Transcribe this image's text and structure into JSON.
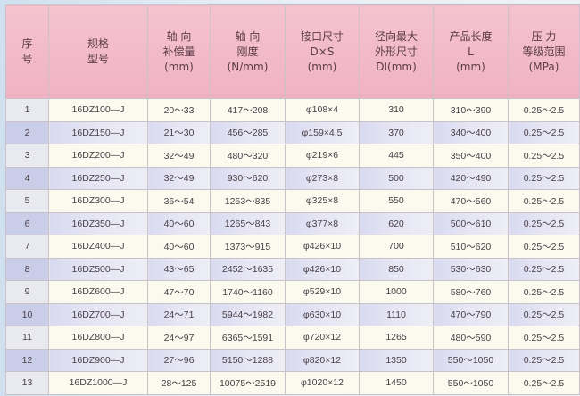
{
  "headers": [
    [
      "序",
      "号"
    ],
    [
      "规格",
      "型号"
    ],
    [
      "轴 向",
      "补偿量",
      "(mm)"
    ],
    [
      "轴 向",
      "刚度",
      "(N/mm)"
    ],
    [
      "接口尺寸",
      "D×S",
      "(mm)"
    ],
    [
      "径向最大",
      "外形尺寸",
      "DI(mm)"
    ],
    [
      "产品长度",
      "L",
      "(mm)"
    ],
    [
      "压 力",
      "等级范围",
      "(MPa)"
    ]
  ],
  "rows": [
    [
      "1",
      "16DZ100—J",
      "20～33",
      "417～208",
      "φ108×4",
      "310",
      "310～390",
      "0.25～2.5"
    ],
    [
      "2",
      "16DZ150—J",
      "21～30",
      "456～285",
      "φ159×4.5",
      "370",
      "340～400",
      "0.25～2.5"
    ],
    [
      "3",
      "16DZ200—J",
      "32～49",
      "480～320",
      "φ219×6",
      "445",
      "350～400",
      "0.25～2.5"
    ],
    [
      "4",
      "16DZ250—J",
      "32～49",
      "930～620",
      "φ273×8",
      "500",
      "420～490",
      "0.25～2.5"
    ],
    [
      "5",
      "16DZ300—J",
      "36～54",
      "1253～835",
      "φ325×8",
      "550",
      "470～560",
      "0.25～2.5"
    ],
    [
      "6",
      "16DZ350—J",
      "40～60",
      "1265～843",
      "φ377×8",
      "620",
      "500～610",
      "0.25～2.5"
    ],
    [
      "7",
      "16DZ400—J",
      "40～60",
      "1373～915",
      "φ426×10",
      "700",
      "510～620",
      "0.25～2.5"
    ],
    [
      "8",
      "16DZ500—J",
      "43～65",
      "2452～1635",
      "φ426×10",
      "850",
      "530～630",
      "0.25～2.5"
    ],
    [
      "9",
      "16DZ600—J",
      "47～70",
      "1740～1160",
      "φ529×10",
      "1000",
      "580～760",
      "0.25～2.5"
    ],
    [
      "10",
      "16DZ700—J",
      "24～71",
      "5944～1982",
      "φ630×10",
      "1110",
      "470～790",
      "0.25～2.5"
    ],
    [
      "11",
      "16DZ800—J",
      "24～97",
      "6365～1591",
      "φ720×12",
      "1265",
      "480～590",
      "0.25～2.5"
    ],
    [
      "12",
      "16DZ900—J",
      "27～96",
      "5150～1288",
      "φ820×12",
      "1350",
      "550～1050",
      "0.25～2.5"
    ],
    [
      "13",
      "16DZ1000—J",
      "28～125",
      "10075～2519",
      "φ1020×12",
      "1450",
      "550～1050",
      "0.25～2.5"
    ]
  ],
  "colors": {
    "header": "#f0b2c3",
    "row_odd": "#fbfaef",
    "row_even": "#dcdcf0"
  }
}
